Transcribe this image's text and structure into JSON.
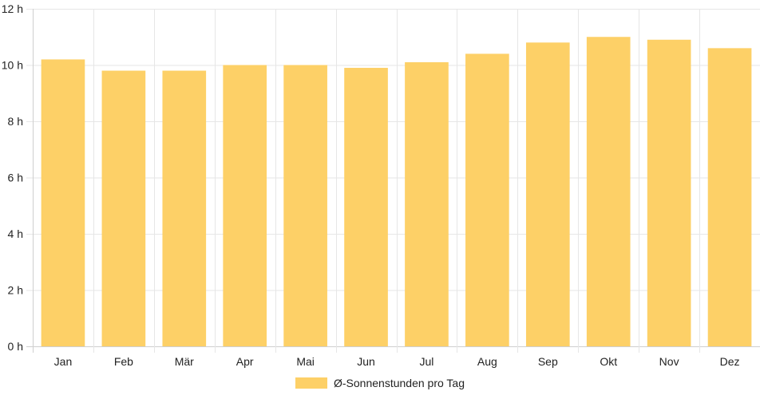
{
  "chart_data": {
    "type": "bar",
    "categories": [
      "Jan",
      "Feb",
      "Mär",
      "Apr",
      "Mai",
      "Jun",
      "Jul",
      "Aug",
      "Sep",
      "Okt",
      "Nov",
      "Dez"
    ],
    "series": [
      {
        "name": "Ø-Sonnenstunden pro Tag",
        "values": [
          10.2,
          9.8,
          9.8,
          10.0,
          10.0,
          9.9,
          10.1,
          10.4,
          10.8,
          11.0,
          10.9,
          10.6
        ],
        "color": "#fdd067"
      }
    ],
    "y_ticks": [
      "0 h",
      "2 h",
      "4 h",
      "6 h",
      "8 h",
      "10 h",
      "12 h"
    ],
    "ylim": [
      0,
      12
    ],
    "y_unit": "h",
    "grid": true,
    "legend_position": "bottom"
  }
}
